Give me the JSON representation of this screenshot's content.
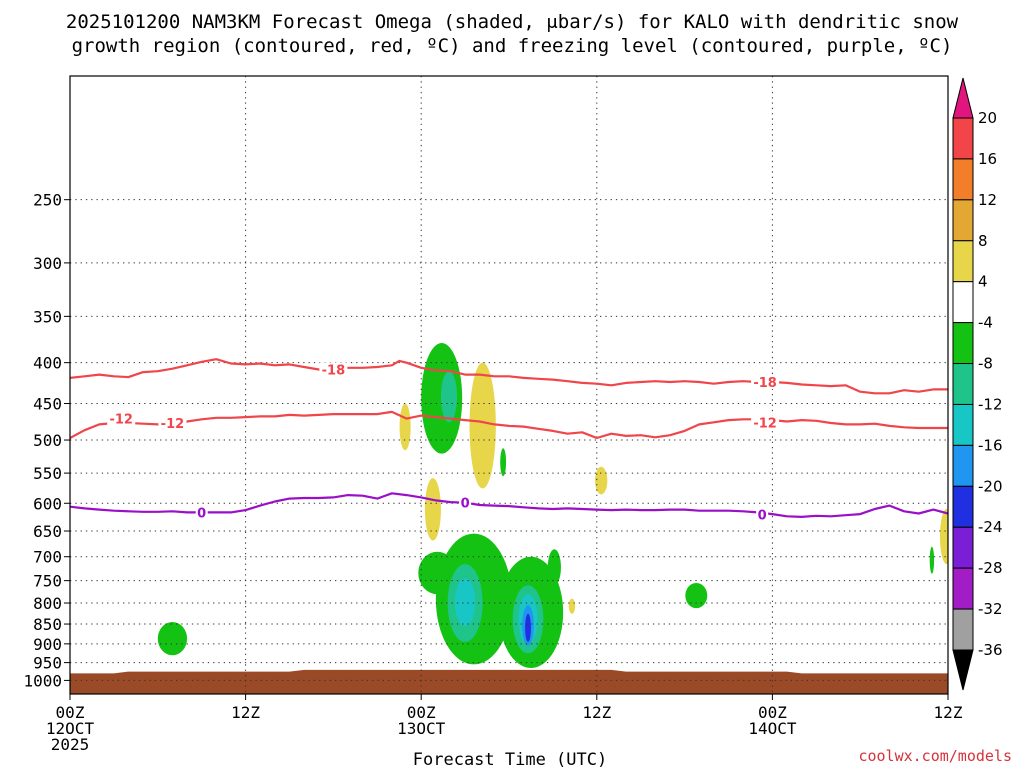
{
  "chart_data": {
    "type": "heatmap",
    "title_line1": "2025101200 NAM3KM Forecast Omega (shaded, μbar/s) for KALO with dendritic snow",
    "title_line2": "growth region (contoured, red, ºC) and freezing level (contoured, purple, ºC)",
    "xlabel": "Forecast Time (UTC)",
    "credit": "coolwx.com/models",
    "x_hours_range": [
      0,
      60
    ],
    "x_ticks": [
      {
        "hour": 0,
        "lines": [
          "00Z",
          "12OCT",
          "2025"
        ]
      },
      {
        "hour": 12,
        "lines": [
          "12Z"
        ]
      },
      {
        "hour": 24,
        "lines": [
          "00Z",
          "13OCT"
        ]
      },
      {
        "hour": 36,
        "lines": [
          "12Z"
        ]
      },
      {
        "hour": 48,
        "lines": [
          "00Z",
          "14OCT"
        ]
      },
      {
        "hour": 60,
        "lines": [
          "12Z"
        ]
      }
    ],
    "y_scale": "log-pressure",
    "ylim_hPa": [
      1040,
      175
    ],
    "y_ticks": [
      250,
      300,
      350,
      400,
      450,
      500,
      550,
      600,
      650,
      700,
      750,
      800,
      850,
      900,
      950,
      1000
    ],
    "grid": true,
    "colorbar": {
      "placement": "right",
      "levels": [
        20,
        16,
        12,
        8,
        4,
        -4,
        -8,
        -12,
        -16,
        -20,
        -24,
        -28,
        -32,
        -36
      ],
      "colors": [
        "#f2454a",
        "#f37e2a",
        "#e3a834",
        "#e8d64a",
        "#ffffff",
        "#14c214",
        "#1ec48a",
        "#18c6c6",
        "#2196f0",
        "#2030e0",
        "#7a1fd6",
        "#a21dc6",
        "#a0a0a0"
      ],
      "top_arrow_color": "#e0157e",
      "bottom_arrow_color": "#000000"
    },
    "ground_color": "#9a4a26",
    "contours": [
      {
        "label": "-18",
        "color": "#f0454a",
        "label_at": [
          [
            18,
            408
          ],
          [
            47.5,
            423
          ]
        ],
        "points": [
          [
            0,
            418
          ],
          [
            1,
            416
          ],
          [
            2,
            414
          ],
          [
            3,
            416
          ],
          [
            4,
            417
          ],
          [
            5,
            411
          ],
          [
            6,
            410
          ],
          [
            7,
            407
          ],
          [
            8,
            403
          ],
          [
            9,
            399
          ],
          [
            10,
            396
          ],
          [
            11,
            401
          ],
          [
            12,
            402
          ],
          [
            13,
            401
          ],
          [
            14,
            403
          ],
          [
            15,
            402
          ],
          [
            16,
            405
          ],
          [
            17,
            408
          ],
          [
            18,
            408
          ],
          [
            19,
            406
          ],
          [
            20,
            406
          ],
          [
            21,
            405
          ],
          [
            22,
            403
          ],
          [
            22.5,
            398
          ],
          [
            23,
            400
          ],
          [
            24,
            406
          ],
          [
            25,
            409
          ],
          [
            26,
            410
          ],
          [
            27,
            414
          ],
          [
            28,
            414
          ],
          [
            29,
            416
          ],
          [
            30,
            416
          ],
          [
            31,
            418
          ],
          [
            32,
            419
          ],
          [
            33,
            420
          ],
          [
            34,
            422
          ],
          [
            35,
            424
          ],
          [
            36,
            425
          ],
          [
            37,
            427
          ],
          [
            38,
            424
          ],
          [
            39,
            423
          ],
          [
            40,
            422
          ],
          [
            41,
            423
          ],
          [
            42,
            422
          ],
          [
            43,
            423
          ],
          [
            44,
            425
          ],
          [
            45,
            423
          ],
          [
            46,
            422
          ],
          [
            47,
            423
          ],
          [
            48,
            423
          ],
          [
            49,
            424
          ],
          [
            50,
            426
          ],
          [
            51,
            427
          ],
          [
            52,
            428
          ],
          [
            53,
            427
          ],
          [
            54,
            435
          ],
          [
            55,
            437
          ],
          [
            56,
            437
          ],
          [
            57,
            433
          ],
          [
            58,
            435
          ],
          [
            59,
            432
          ],
          [
            60,
            432
          ]
        ]
      },
      {
        "label": "-12",
        "color": "#f0454a",
        "label_at": [
          [
            7,
            476
          ],
          [
            3.5,
            470
          ],
          [
            47.5,
            475
          ]
        ],
        "points": [
          [
            0,
            497
          ],
          [
            1,
            486
          ],
          [
            2,
            478
          ],
          [
            3,
            476
          ],
          [
            4,
            476
          ],
          [
            5,
            477
          ],
          [
            6,
            478
          ],
          [
            7,
            476
          ],
          [
            8,
            474
          ],
          [
            9,
            471
          ],
          [
            10,
            469
          ],
          [
            11,
            469
          ],
          [
            12,
            468
          ],
          [
            13,
            467
          ],
          [
            14,
            467
          ],
          [
            15,
            465
          ],
          [
            16,
            466
          ],
          [
            17,
            465
          ],
          [
            18,
            464
          ],
          [
            19,
            464
          ],
          [
            20,
            464
          ],
          [
            21,
            464
          ],
          [
            22,
            461
          ],
          [
            23,
            470
          ],
          [
            24,
            466
          ],
          [
            25,
            468
          ],
          [
            26,
            470
          ],
          [
            27,
            472
          ],
          [
            28,
            474
          ],
          [
            29,
            478
          ],
          [
            30,
            480
          ],
          [
            31,
            481
          ],
          [
            32,
            484
          ],
          [
            33,
            487
          ],
          [
            34,
            491
          ],
          [
            35,
            489
          ],
          [
            36,
            497
          ],
          [
            37,
            491
          ],
          [
            38,
            494
          ],
          [
            39,
            493
          ],
          [
            40,
            496
          ],
          [
            41,
            493
          ],
          [
            42,
            487
          ],
          [
            43,
            478
          ],
          [
            44,
            475
          ],
          [
            45,
            472
          ],
          [
            46,
            471
          ],
          [
            47,
            471
          ],
          [
            48,
            472
          ],
          [
            49,
            474
          ],
          [
            50,
            472
          ],
          [
            51,
            473
          ],
          [
            52,
            476
          ],
          [
            53,
            478
          ],
          [
            54,
            478
          ],
          [
            55,
            477
          ],
          [
            56,
            480
          ],
          [
            57,
            482
          ],
          [
            58,
            483
          ],
          [
            59,
            483
          ],
          [
            60,
            483
          ]
        ]
      },
      {
        "label": "0",
        "color": "#9a0fc8",
        "label_at": [
          [
            9,
            616
          ],
          [
            27,
            599
          ],
          [
            47.3,
            620
          ]
        ],
        "points": [
          [
            0,
            606
          ],
          [
            1,
            609
          ],
          [
            2,
            611
          ],
          [
            3,
            613
          ],
          [
            4,
            614
          ],
          [
            5,
            615
          ],
          [
            6,
            615
          ],
          [
            7,
            614
          ],
          [
            8,
            616
          ],
          [
            9,
            616
          ],
          [
            10,
            616
          ],
          [
            11,
            616
          ],
          [
            12,
            612
          ],
          [
            13,
            604
          ],
          [
            14,
            597
          ],
          [
            15,
            592
          ],
          [
            16,
            591
          ],
          [
            17,
            591
          ],
          [
            18,
            590
          ],
          [
            19,
            586
          ],
          [
            20,
            587
          ],
          [
            21,
            592
          ],
          [
            22,
            583
          ],
          [
            23,
            586
          ],
          [
            24,
            590
          ],
          [
            25,
            595
          ],
          [
            26,
            598
          ],
          [
            27,
            599
          ],
          [
            28,
            603
          ],
          [
            29,
            604
          ],
          [
            30,
            605
          ],
          [
            31,
            607
          ],
          [
            32,
            609
          ],
          [
            33,
            610
          ],
          [
            34,
            609
          ],
          [
            35,
            610
          ],
          [
            36,
            611
          ],
          [
            37,
            612
          ],
          [
            38,
            611
          ],
          [
            39,
            612
          ],
          [
            40,
            612
          ],
          [
            41,
            611
          ],
          [
            42,
            611
          ],
          [
            43,
            613
          ],
          [
            44,
            613
          ],
          [
            45,
            613
          ],
          [
            46,
            614
          ],
          [
            47,
            616
          ],
          [
            48,
            619
          ],
          [
            49,
            623
          ],
          [
            50,
            624
          ],
          [
            51,
            622
          ],
          [
            52,
            623
          ],
          [
            53,
            621
          ],
          [
            54,
            619
          ],
          [
            55,
            610
          ],
          [
            56,
            604
          ],
          [
            57,
            614
          ],
          [
            58,
            618
          ],
          [
            59,
            611
          ],
          [
            60,
            618
          ]
        ]
      }
    ],
    "ground_surface": [
      [
        0,
        980
      ],
      [
        3,
        980
      ],
      [
        4,
        975
      ],
      [
        15,
        975
      ],
      [
        16,
        970
      ],
      [
        37,
        970
      ],
      [
        38,
        975
      ],
      [
        49,
        975
      ],
      [
        50,
        980
      ],
      [
        60,
        980
      ]
    ],
    "omega_regions": [
      {
        "value": 4,
        "color": "#e8d64a",
        "cx": 22.9,
        "cy": 465,
        "rx": 0.38,
        "p_top": 450,
        "p_bottom": 515
      },
      {
        "value": 4,
        "color": "#e8d64a",
        "cx": 28.2,
        "cy": 490,
        "rx": 0.9,
        "p_top": 400,
        "p_bottom": 575
      },
      {
        "value": 4,
        "color": "#e8d64a",
        "cx": 24.8,
        "cy": 612,
        "rx": 0.55,
        "p_top": 558,
        "p_bottom": 668
      },
      {
        "value": 4,
        "color": "#e8d64a",
        "cx": 36.3,
        "cy": 562,
        "rx": 0.42,
        "p_top": 540,
        "p_bottom": 585
      },
      {
        "value": 4,
        "color": "#e8d64a",
        "cx": 59.9,
        "cy": 660,
        "rx": 0.45,
        "p_top": 610,
        "p_bottom": 715
      },
      {
        "value": 4,
        "color": "#e8d64a",
        "cx": 34.3,
        "cy": 805,
        "rx": 0.22,
        "p_top": 790,
        "p_bottom": 825
      },
      {
        "value": -4,
        "color": "#14c214",
        "cx": 25.4,
        "cy": 450,
        "rx": 1.4,
        "p_top": 378,
        "p_bottom": 520
      },
      {
        "value": -4,
        "color": "#14c214",
        "cx": 29.6,
        "cy": 530,
        "rx": 0.2,
        "p_top": 512,
        "p_bottom": 555
      },
      {
        "value": -4,
        "color": "#14c214",
        "cx": 27.6,
        "cy": 800,
        "rx": 2.6,
        "p_top": 655,
        "p_bottom": 955
      },
      {
        "value": -4,
        "color": "#14c214",
        "cx": 25.1,
        "cy": 730,
        "rx": 1.3,
        "p_top": 690,
        "p_bottom": 780
      },
      {
        "value": -4,
        "color": "#14c214",
        "cx": 31.5,
        "cy": 830,
        "rx": 2.2,
        "p_top": 700,
        "p_bottom": 965
      },
      {
        "value": -4,
        "color": "#14c214",
        "cx": 33.1,
        "cy": 720,
        "rx": 0.45,
        "p_top": 685,
        "p_bottom": 760
      },
      {
        "value": -4,
        "color": "#14c214",
        "cx": 7.0,
        "cy": 885,
        "rx": 1.0,
        "p_top": 845,
        "p_bottom": 930
      },
      {
        "value": -4,
        "color": "#14c214",
        "cx": 42.8,
        "cy": 778,
        "rx": 0.75,
        "p_top": 755,
        "p_bottom": 812
      },
      {
        "value": -4,
        "color": "#14c214",
        "cx": 58.9,
        "cy": 705,
        "rx": 0.15,
        "p_top": 680,
        "p_bottom": 735
      },
      {
        "value": -8,
        "color": "#1ec48a",
        "cx": 25.9,
        "cy": 440,
        "rx": 0.55,
        "p_top": 410,
        "p_bottom": 475
      },
      {
        "value": -8,
        "color": "#1ec48a",
        "cx": 27.0,
        "cy": 790,
        "rx": 1.2,
        "p_top": 715,
        "p_bottom": 895
      },
      {
        "value": -8,
        "color": "#1ec48a",
        "cx": 31.3,
        "cy": 825,
        "rx": 1.05,
        "p_top": 760,
        "p_bottom": 925
      },
      {
        "value": -12,
        "color": "#18c6c6",
        "cx": 27.0,
        "cy": 795,
        "rx": 0.7,
        "p_top": 745,
        "p_bottom": 855
      },
      {
        "value": -12,
        "color": "#18c6c6",
        "cx": 31.3,
        "cy": 835,
        "rx": 0.65,
        "p_top": 780,
        "p_bottom": 900
      },
      {
        "value": -16,
        "color": "#2196f0",
        "cx": 31.3,
        "cy": 855,
        "rx": 0.4,
        "p_top": 805,
        "p_bottom": 905
      },
      {
        "value": -20,
        "color": "#2030e0",
        "cx": 31.3,
        "cy": 860,
        "rx": 0.2,
        "p_top": 825,
        "p_bottom": 895
      }
    ]
  }
}
